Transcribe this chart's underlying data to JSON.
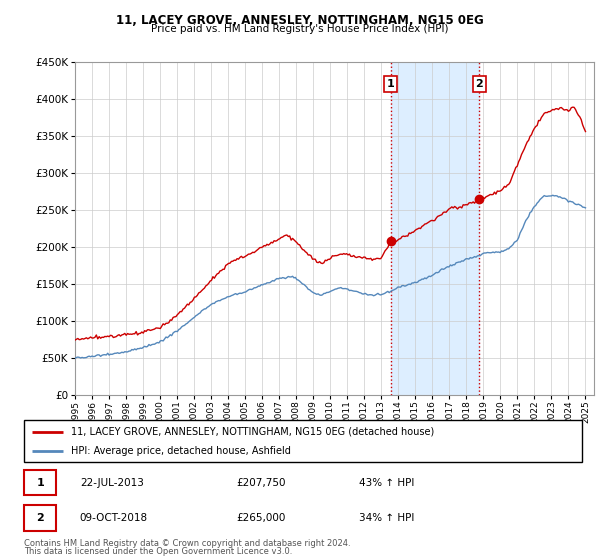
{
  "title": "11, LACEY GROVE, ANNESLEY, NOTTINGHAM, NG15 0EG",
  "subtitle": "Price paid vs. HM Land Registry's House Price Index (HPI)",
  "sale1_date": "22-JUL-2013",
  "sale1_price": 207750,
  "sale1_label": "1",
  "sale1_year": 2013.55,
  "sale2_date": "09-OCT-2018",
  "sale2_price": 265000,
  "sale2_label": "2",
  "sale2_year": 2018.77,
  "legend_property": "11, LACEY GROVE, ANNESLEY, NOTTINGHAM, NG15 0EG (detached house)",
  "legend_hpi": "HPI: Average price, detached house, Ashfield",
  "table_row1": [
    "1",
    "22-JUL-2013",
    "£207,750",
    "43% ↑ HPI"
  ],
  "table_row2": [
    "2",
    "09-OCT-2018",
    "£265,000",
    "34% ↑ HPI"
  ],
  "footer1": "Contains HM Land Registry data © Crown copyright and database right 2024.",
  "footer2": "This data is licensed under the Open Government Licence v3.0.",
  "property_color": "#cc0000",
  "hpi_color": "#5588bb",
  "shade_color": "#ddeeff",
  "ylim_min": 0,
  "ylim_max": 450000,
  "xlim_min": 1995.0,
  "xlim_max": 2025.5
}
